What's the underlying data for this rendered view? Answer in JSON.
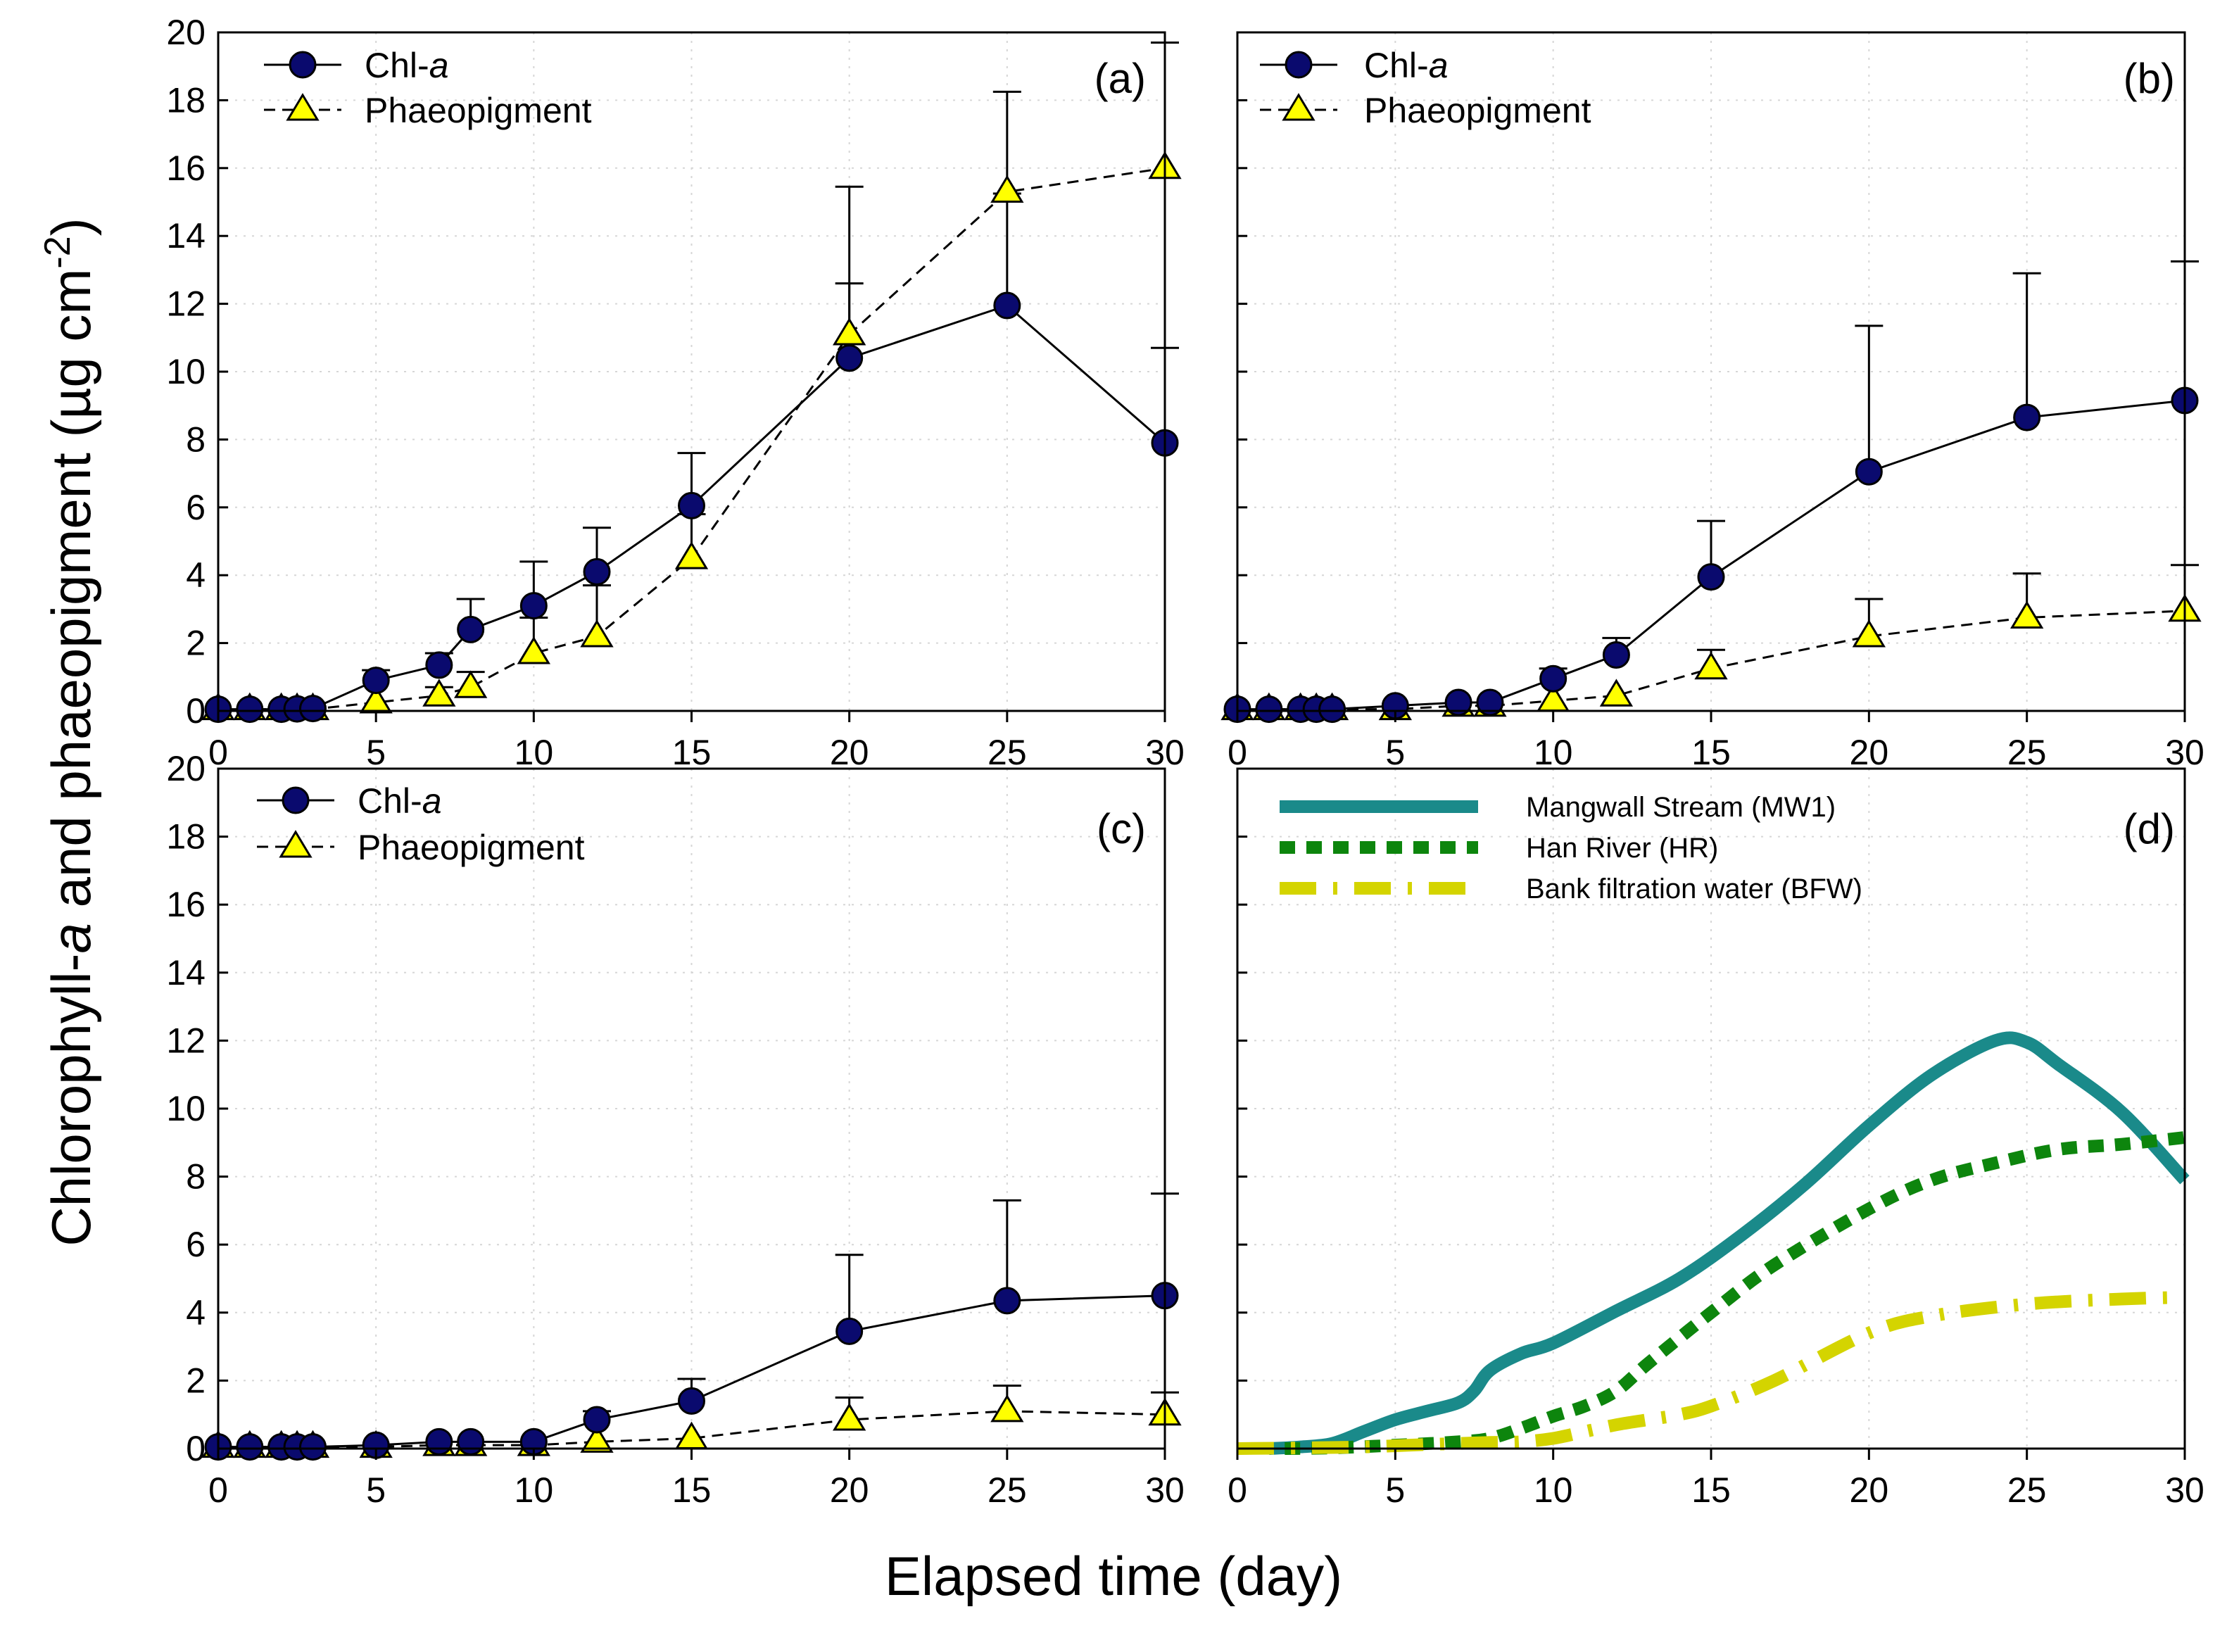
{
  "figure": {
    "ylabel_parts": [
      "Chlorophyll-",
      "a",
      " and phaeopigment (µg cm",
      "-2",
      ")"
    ],
    "xlabel": "Elapsed time (day)"
  },
  "chart_data": [
    {
      "type": "line",
      "panel": "(a)",
      "xlim": [
        0,
        30
      ],
      "ylim": [
        0,
        20
      ],
      "xticks": [
        0,
        5,
        10,
        15,
        20,
        25,
        30
      ],
      "yticks": [
        0,
        2,
        4,
        6,
        8,
        10,
        12,
        14,
        16,
        18,
        20
      ],
      "grid": true,
      "legend": "top-left",
      "series": [
        {
          "name": "Chl-a",
          "name_parts": [
            "Chl-",
            "a"
          ],
          "marker": "circle",
          "line": "solid",
          "color": "#0a0a6e",
          "x": [
            0,
            1,
            2,
            2.5,
            3,
            5,
            7,
            8,
            10,
            12,
            15,
            20,
            25,
            30
          ],
          "y": [
            0.05,
            0.05,
            0.05,
            0.06,
            0.07,
            0.9,
            1.35,
            2.4,
            3.1,
            4.1,
            6.05,
            10.4,
            11.95,
            7.9
          ],
          "err": [
            0,
            0,
            0,
            0,
            0,
            0.3,
            0.35,
            0.9,
            1.3,
            1.3,
            1.55,
            2.2,
            3.3,
            2.8
          ]
        },
        {
          "name": "Phaeopigment",
          "name_parts": [
            "Phaeopigment"
          ],
          "marker": "triangle",
          "line": "dashed",
          "color": "#ffff00",
          "x": [
            0,
            1,
            2,
            2.5,
            3,
            5,
            7,
            8,
            10,
            12,
            15,
            20,
            25,
            30
          ],
          "y": [
            0.05,
            0.05,
            0.05,
            0.05,
            0.05,
            0.25,
            0.45,
            0.7,
            1.7,
            2.2,
            4.5,
            11.1,
            15.3,
            16.0
          ],
          "err": [
            0,
            0,
            0,
            0,
            0,
            0,
            0.25,
            0.45,
            1.05,
            1.5,
            1.3,
            4.35,
            2.95,
            3.7
          ]
        }
      ]
    },
    {
      "type": "line",
      "panel": "(b)",
      "xlim": [
        0,
        30
      ],
      "ylim": [
        0,
        20
      ],
      "xticks": [
        0,
        5,
        10,
        15,
        20,
        25,
        30
      ],
      "yticks": [
        0,
        2,
        4,
        6,
        8,
        10,
        12,
        14,
        16,
        18,
        20
      ],
      "grid": true,
      "legend": "top-left",
      "series": [
        {
          "name": "Chl-a",
          "name_parts": [
            "Chl-",
            "a"
          ],
          "marker": "circle",
          "line": "solid",
          "color": "#0a0a6e",
          "x": [
            0,
            1,
            2,
            2.5,
            3,
            5,
            7,
            8,
            10,
            12,
            15,
            20,
            25,
            30
          ],
          "y": [
            0.05,
            0.05,
            0.05,
            0.05,
            0.05,
            0.15,
            0.25,
            0.25,
            0.95,
            1.65,
            3.95,
            7.05,
            8.65,
            9.15
          ],
          "err": [
            0,
            0,
            0,
            0,
            0,
            0,
            0,
            0,
            0.3,
            0.5,
            1.65,
            4.3,
            4.25,
            4.1
          ]
        },
        {
          "name": "Phaeopigment",
          "name_parts": [
            "Phaeopigment"
          ],
          "marker": "triangle",
          "line": "dashed",
          "color": "#ffff00",
          "x": [
            0,
            1,
            2,
            2.5,
            3,
            5,
            7,
            8,
            10,
            12,
            15,
            20,
            25,
            30
          ],
          "y": [
            0.05,
            0.05,
            0.05,
            0.05,
            0.05,
            0.05,
            0.15,
            0.15,
            0.3,
            0.45,
            1.25,
            2.2,
            2.75,
            2.95
          ],
          "err": [
            0,
            0,
            0,
            0,
            0,
            0,
            0,
            0,
            0,
            0,
            0.55,
            1.1,
            1.3,
            1.35
          ]
        }
      ]
    },
    {
      "type": "line",
      "panel": "(c)",
      "xlim": [
        0,
        30
      ],
      "ylim": [
        0,
        20
      ],
      "xticks": [
        0,
        5,
        10,
        15,
        20,
        25,
        30
      ],
      "yticks": [
        0,
        2,
        4,
        6,
        8,
        10,
        12,
        14,
        16,
        18,
        20
      ],
      "grid": true,
      "legend": "top-left",
      "series": [
        {
          "name": "Chl-a",
          "name_parts": [
            "Chl-",
            "a"
          ],
          "marker": "circle",
          "line": "solid",
          "color": "#0a0a6e",
          "x": [
            0,
            1,
            2,
            2.5,
            3,
            5,
            7,
            8,
            10,
            12,
            15,
            20,
            25,
            30
          ],
          "y": [
            0.05,
            0.05,
            0.05,
            0.05,
            0.05,
            0.1,
            0.2,
            0.2,
            0.2,
            0.85,
            1.4,
            3.45,
            4.35,
            4.5
          ],
          "err": [
            0,
            0,
            0,
            0,
            0,
            0,
            0,
            0,
            0,
            0.25,
            0.65,
            2.25,
            2.95,
            3.0
          ]
        },
        {
          "name": "Phaeopigment",
          "name_parts": [
            "Phaeopigment"
          ],
          "marker": "triangle",
          "line": "dashed",
          "color": "#ffff00",
          "x": [
            0,
            1,
            2,
            2.5,
            3,
            5,
            7,
            8,
            10,
            12,
            15,
            20,
            25,
            30
          ],
          "y": [
            0.05,
            0.05,
            0.05,
            0.05,
            0.05,
            0.05,
            0.1,
            0.1,
            0.1,
            0.2,
            0.3,
            0.85,
            1.1,
            1.0
          ],
          "err": [
            0,
            0,
            0,
            0,
            0,
            0,
            0,
            0,
            0,
            0,
            0,
            0.65,
            0.75,
            0.65
          ]
        }
      ]
    },
    {
      "type": "line",
      "panel": "(d)",
      "xlim": [
        0,
        30
      ],
      "ylim": [
        0,
        20
      ],
      "xticks": [
        0,
        5,
        10,
        15,
        20,
        25,
        30
      ],
      "yticks": [
        0,
        2,
        4,
        6,
        8,
        10,
        12,
        14,
        16,
        18,
        20
      ],
      "grid": true,
      "legend": "top-left",
      "series": [
        {
          "name": "Mangwall Stream (MW1)",
          "style": "solid-thick",
          "color": "#1a8a8a",
          "x": [
            1,
            2,
            3,
            4,
            5,
            6,
            7,
            7.5,
            8,
            9,
            10,
            12,
            14,
            16,
            18,
            20,
            22,
            24,
            25,
            26,
            28,
            30
          ],
          "y": [
            0.0,
            0.05,
            0.15,
            0.5,
            0.85,
            1.1,
            1.35,
            1.7,
            2.3,
            2.8,
            3.1,
            4.05,
            5.0,
            6.3,
            7.8,
            9.5,
            11.0,
            12.0,
            11.95,
            11.3,
            9.9,
            7.9
          ]
        },
        {
          "name": "Han River (HR)",
          "style": "dotted-thick",
          "color": "#0d850d",
          "x": [
            1.5,
            3,
            5,
            7,
            8,
            9,
            10,
            11,
            12,
            13,
            15,
            17,
            20,
            22,
            24,
            26,
            28,
            30
          ],
          "y": [
            0.0,
            0.02,
            0.1,
            0.2,
            0.3,
            0.6,
            0.95,
            1.25,
            1.7,
            2.5,
            4.0,
            5.4,
            7.05,
            7.9,
            8.4,
            8.8,
            8.95,
            9.15
          ]
        },
        {
          "name": "Bank filtration water (BFW)",
          "style": "dashdot-thick",
          "color": "#d4d400",
          "x": [
            0,
            2,
            4,
            6,
            8,
            9,
            10,
            11,
            12,
            13,
            14,
            15,
            17,
            20,
            22,
            25,
            28,
            30
          ],
          "y": [
            0.0,
            0.02,
            0.05,
            0.12,
            0.18,
            0.2,
            0.3,
            0.5,
            0.7,
            0.85,
            1.0,
            1.25,
            2.0,
            3.4,
            3.9,
            4.25,
            4.4,
            4.45
          ]
        }
      ]
    }
  ]
}
